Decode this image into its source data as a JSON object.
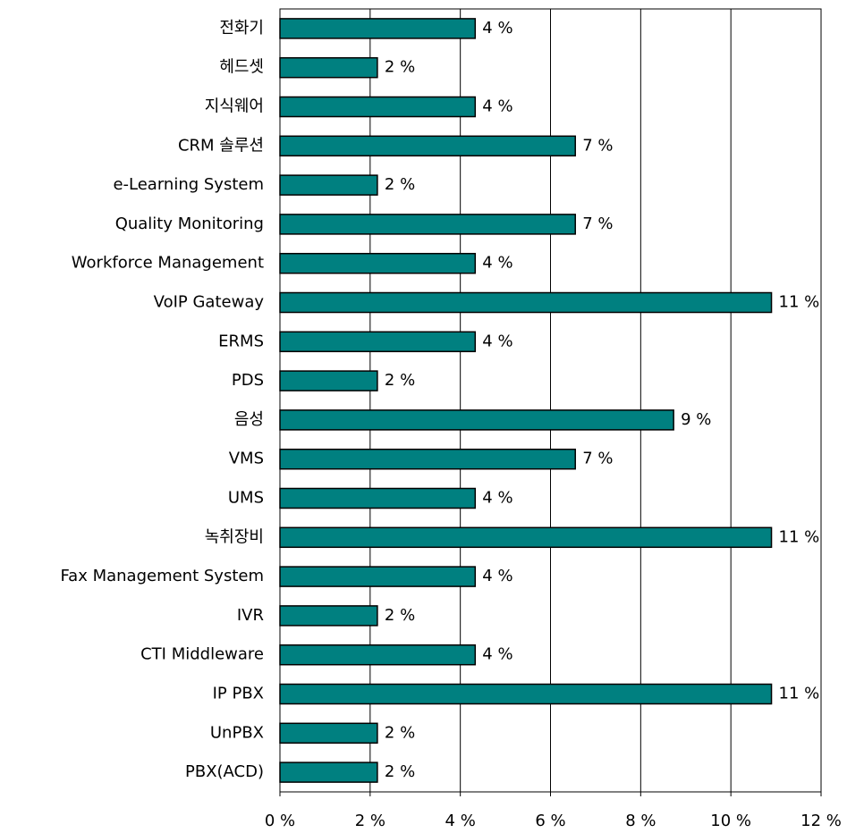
{
  "chart_data": {
    "type": "bar",
    "orientation": "horizontal",
    "categories": [
      "전화기",
      "헤드셋",
      "지식웨어",
      "CRM 솔루션",
      "e-Learning System",
      "Quality Monitoring",
      "Workforce Management",
      "VoIP Gateway",
      "ERMS",
      "PDS",
      "음성",
      "VMS",
      "UMS",
      "녹취장비",
      "Fax Management System",
      "IVR",
      "CTI Middleware",
      "IP PBX",
      "UnPBX",
      "PBX(ACD)"
    ],
    "values": [
      4.33,
      2.16,
      4.33,
      6.55,
      2.16,
      6.55,
      4.33,
      10.9,
      4.33,
      2.16,
      8.73,
      6.55,
      4.33,
      10.9,
      4.33,
      2.16,
      4.33,
      10.9,
      2.16,
      2.16
    ],
    "value_labels": [
      "4 %",
      "2 %",
      "4 %",
      "7 %",
      "2 %",
      "7 %",
      "4 %",
      "11 %",
      "4 %",
      "2 %",
      "9 %",
      "7 %",
      "4 %",
      "11 %",
      "4 %",
      "2 %",
      "4 %",
      "11 %",
      "2 %",
      "2 %"
    ],
    "color": "#008080",
    "xlim": [
      0,
      12
    ],
    "xticks": [
      {
        "value": 0,
        "label": "0 %"
      },
      {
        "value": 2,
        "label": "2 %"
      },
      {
        "value": 4,
        "label": "4 %"
      },
      {
        "value": 6,
        "label": "6 %"
      },
      {
        "value": 8,
        "label": "8 %"
      },
      {
        "value": 10,
        "label": "10 %"
      },
      {
        "value": 12,
        "label": "12 %"
      }
    ],
    "grid": true
  }
}
